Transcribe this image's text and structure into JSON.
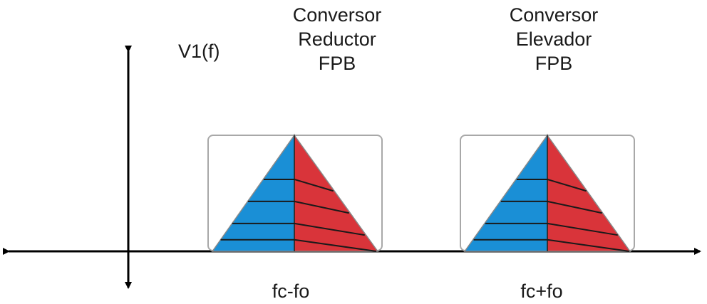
{
  "diagram": {
    "ylabel": "V1(f)",
    "blocks": [
      {
        "title_lines": [
          "Conversor",
          "Reductor",
          "FPB"
        ],
        "freq_label": "fc-fo"
      },
      {
        "title_lines": [
          "Conversor",
          "Elevador",
          "FPB"
        ],
        "freq_label": "fc+fo"
      }
    ],
    "colors": {
      "axis": "#000000",
      "left_half": "#1a8fd6",
      "right_half": "#d9343a",
      "stripe": "#1a1a1a",
      "box_border": "#a8a8a8"
    }
  }
}
